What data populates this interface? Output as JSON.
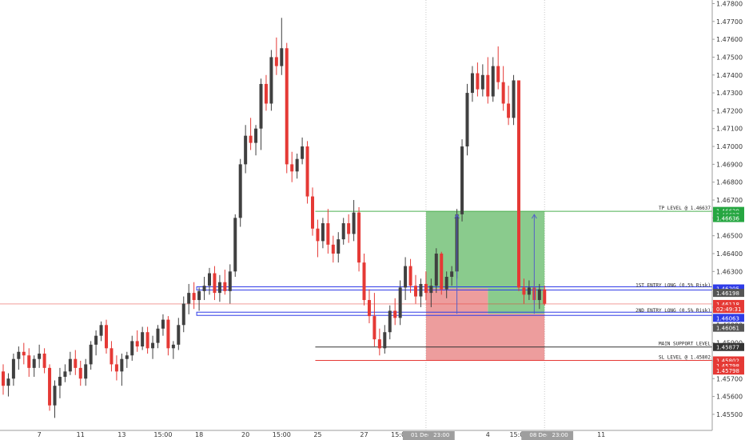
{
  "chart_data": {
    "type": "candlestick",
    "symbol_note": "",
    "ylim": [
      1.4541,
      1.4782
    ],
    "y_ticks": [
      "1.47800",
      "1.47700",
      "1.47600",
      "1.47500",
      "1.47400",
      "1.47300",
      "1.47200",
      "1.47100",
      "1.47000",
      "1.46900",
      "1.46800",
      "1.46700",
      "1.46600",
      "1.46500",
      "1.46400",
      "1.46300",
      "1.46200",
      "1.46100",
      "1.46000",
      "1.45900",
      "1.45800",
      "1.45700",
      "1.45600",
      "1.45500"
    ],
    "x_tick_labels": [
      {
        "label": "7",
        "index": 7
      },
      {
        "label": "11",
        "index": 15
      },
      {
        "label": "13",
        "index": 23
      },
      {
        "label": "15:00",
        "index": 31
      },
      {
        "label": "18",
        "index": 38
      },
      {
        "label": "20",
        "index": 47
      },
      {
        "label": "15:00",
        "index": 54
      },
      {
        "label": "25",
        "index": 61
      },
      {
        "label": "27",
        "index": 70
      },
      {
        "label": "15:00",
        "index": 77
      },
      {
        "label": "4",
        "index": 94
      },
      {
        "label": "15:00",
        "index": 100
      },
      {
        "label": "11",
        "index": 116
      }
    ],
    "x_highlight_labels": [
      {
        "label": "01 Dec '19",
        "index": 82
      },
      {
        "label": "23:00",
        "index": 85
      },
      {
        "label": "08 Dec '19",
        "index": 105
      },
      {
        "label": "23:00",
        "index": 108
      }
    ],
    "candles": [
      [
        1.4574,
        1.4578,
        1.4561,
        1.4566
      ],
      [
        1.4566,
        1.4573,
        1.456,
        1.457
      ],
      [
        1.457,
        1.4584,
        1.4566,
        1.4581
      ],
      [
        1.4581,
        1.4588,
        1.4575,
        1.4585
      ],
      [
        1.4585,
        1.459,
        1.4578,
        1.4583
      ],
      [
        1.4583,
        1.4587,
        1.4571,
        1.4576
      ],
      [
        1.4576,
        1.4583,
        1.4571,
        1.4581
      ],
      [
        1.4581,
        1.4589,
        1.4576,
        1.4584
      ],
      [
        1.4584,
        1.4587,
        1.4573,
        1.4576
      ],
      [
        1.4576,
        1.4578,
        1.4552,
        1.4555
      ],
      [
        1.4555,
        1.4569,
        1.4548,
        1.4566
      ],
      [
        1.4566,
        1.4576,
        1.4559,
        1.4571
      ],
      [
        1.4571,
        1.4578,
        1.4568,
        1.4574
      ],
      [
        1.4574,
        1.4585,
        1.4572,
        1.4581
      ],
      [
        1.4581,
        1.4586,
        1.4572,
        1.4576
      ],
      [
        1.4576,
        1.458,
        1.4566,
        1.457
      ],
      [
        1.457,
        1.4581,
        1.4566,
        1.4578
      ],
      [
        1.4578,
        1.4591,
        1.4575,
        1.4589
      ],
      [
        1.4589,
        1.4597,
        1.4583,
        1.4594
      ],
      [
        1.4594,
        1.4602,
        1.4591,
        1.46
      ],
      [
        1.46,
        1.4603,
        1.4584,
        1.4587
      ],
      [
        1.4587,
        1.4591,
        1.4574,
        1.4578
      ],
      [
        1.4578,
        1.4583,
        1.4569,
        1.4574
      ],
      [
        1.4574,
        1.4584,
        1.4566,
        1.4581
      ],
      [
        1.4581,
        1.4585,
        1.4576,
        1.4583
      ],
      [
        1.4583,
        1.4594,
        1.458,
        1.4591
      ],
      [
        1.4591,
        1.4597,
        1.4585,
        1.4588
      ],
      [
        1.4588,
        1.4599,
        1.4586,
        1.4596
      ],
      [
        1.4596,
        1.4599,
        1.4584,
        1.4587
      ],
      [
        1.4587,
        1.4594,
        1.4581,
        1.459
      ],
      [
        1.459,
        1.46,
        1.4587,
        1.4598
      ],
      [
        1.4598,
        1.4606,
        1.4594,
        1.4603
      ],
      [
        1.4603,
        1.4605,
        1.4583,
        1.4587
      ],
      [
        1.4587,
        1.4591,
        1.4581,
        1.4589
      ],
      [
        1.4589,
        1.4604,
        1.4586,
        1.46
      ],
      [
        1.46,
        1.4616,
        1.4596,
        1.4612
      ],
      [
        1.4612,
        1.4623,
        1.4606,
        1.4618
      ],
      [
        1.4618,
        1.4624,
        1.4609,
        1.4614
      ],
      [
        1.4614,
        1.4621,
        1.4608,
        1.4619
      ],
      [
        1.4619,
        1.4627,
        1.4614,
        1.4622
      ],
      [
        1.4622,
        1.4632,
        1.4617,
        1.4629
      ],
      [
        1.4629,
        1.4633,
        1.4614,
        1.4618
      ],
      [
        1.4618,
        1.4628,
        1.4613,
        1.4624
      ],
      [
        1.4624,
        1.4631,
        1.4617,
        1.4619
      ],
      [
        1.4619,
        1.4634,
        1.4612,
        1.463
      ],
      [
        1.463,
        1.4662,
        1.4627,
        1.466
      ],
      [
        1.466,
        1.4693,
        1.4655,
        1.469
      ],
      [
        1.469,
        1.4712,
        1.4685,
        1.4706
      ],
      [
        1.4706,
        1.4716,
        1.4698,
        1.4702
      ],
      [
        1.4702,
        1.4712,
        1.4695,
        1.471
      ],
      [
        1.471,
        1.4738,
        1.4698,
        1.4735
      ],
      [
        1.4735,
        1.474,
        1.472,
        1.4724
      ],
      [
        1.4724,
        1.4754,
        1.472,
        1.475
      ],
      [
        1.475,
        1.4761,
        1.474,
        1.4745
      ],
      [
        1.4745,
        1.4772,
        1.474,
        1.4755
      ],
      [
        1.4755,
        1.4758,
        1.4685,
        1.469
      ],
      [
        1.469,
        1.4697,
        1.468,
        1.4686
      ],
      [
        1.4686,
        1.4696,
        1.4682,
        1.4693
      ],
      [
        1.4693,
        1.4705,
        1.469,
        1.47
      ],
      [
        1.47,
        1.4703,
        1.4668,
        1.4672
      ],
      [
        1.4672,
        1.4677,
        1.465,
        1.4654
      ],
      [
        1.4654,
        1.4659,
        1.4638,
        1.4647
      ],
      [
        1.4647,
        1.466,
        1.4643,
        1.4657
      ],
      [
        1.4657,
        1.4665,
        1.464,
        1.4645
      ],
      [
        1.4645,
        1.465,
        1.4635,
        1.464
      ],
      [
        1.464,
        1.4652,
        1.4635,
        1.4648
      ],
      [
        1.4648,
        1.466,
        1.4645,
        1.4657
      ],
      [
        1.4657,
        1.4662,
        1.4646,
        1.4651
      ],
      [
        1.4651,
        1.467,
        1.4647,
        1.4663
      ],
      [
        1.4663,
        1.4666,
        1.463,
        1.4635
      ],
      [
        1.4635,
        1.464,
        1.4611,
        1.4614
      ],
      [
        1.4614,
        1.462,
        1.4601,
        1.4605
      ],
      [
        1.4605,
        1.4618,
        1.4588,
        1.4592
      ],
      [
        1.4592,
        1.4598,
        1.4583,
        1.4587
      ],
      [
        1.4587,
        1.46,
        1.4584,
        1.4596
      ],
      [
        1.4596,
        1.4611,
        1.4592,
        1.4608
      ],
      [
        1.4608,
        1.4615,
        1.46,
        1.4604
      ],
      [
        1.4604,
        1.4625,
        1.46,
        1.4621
      ],
      [
        1.4621,
        1.4638,
        1.4614,
        1.4633
      ],
      [
        1.4633,
        1.4637,
        1.4618,
        1.4622
      ],
      [
        1.4622,
        1.4628,
        1.4612,
        1.4616
      ],
      [
        1.4616,
        1.4626,
        1.461,
        1.4623
      ],
      [
        1.4623,
        1.463,
        1.4614,
        1.4618
      ],
      [
        1.4618,
        1.4626,
        1.461,
        1.4622
      ],
      [
        1.4622,
        1.4643,
        1.4618,
        1.464
      ],
      [
        1.464,
        1.4641,
        1.4617,
        1.462
      ],
      [
        1.462,
        1.463,
        1.4615,
        1.4627
      ],
      [
        1.4627,
        1.4633,
        1.4622,
        1.463
      ],
      [
        1.463,
        1.4665,
        1.4626,
        1.4662
      ],
      [
        1.4662,
        1.4704,
        1.4658,
        1.47
      ],
      [
        1.47,
        1.4735,
        1.4695,
        1.473
      ],
      [
        1.473,
        1.4745,
        1.4725,
        1.4741
      ],
      [
        1.4741,
        1.4747,
        1.4728,
        1.4732
      ],
      [
        1.4732,
        1.4746,
        1.4728,
        1.474
      ],
      [
        1.474,
        1.475,
        1.4724,
        1.4728
      ],
      [
        1.4728,
        1.475,
        1.4725,
        1.4745
      ],
      [
        1.4745,
        1.4756,
        1.4732,
        1.4736
      ],
      [
        1.4736,
        1.4745,
        1.472,
        1.4724
      ],
      [
        1.4724,
        1.4734,
        1.4712,
        1.4716
      ],
      [
        1.4716,
        1.474,
        1.4712,
        1.4737
      ],
      [
        1.4737,
        1.4737,
        1.4619,
        1.4621
      ],
      [
        1.4621,
        1.4626,
        1.4612,
        1.4617
      ],
      [
        1.4617,
        1.4625,
        1.4614,
        1.4621
      ],
      [
        1.4621,
        1.4625,
        1.4612,
        1.4614
      ],
      [
        1.4614,
        1.4623,
        1.4609,
        1.462
      ],
      [
        1.462,
        1.4622,
        1.4611,
        1.4612
      ]
    ],
    "levels": [
      {
        "label": "TP LEVEL @ 1.46637",
        "price": 1.46637,
        "color": "#4caf50",
        "start_index": 61
      },
      {
        "label": "1ST ENTRY LONG (0.5% Risk)",
        "price": 1.46205,
        "color": "#2f3ce8",
        "start_index": 38
      },
      {
        "label": "2ND ENTRY LONG (0.5% Risk)",
        "price": 1.46063,
        "color": "#2f3ce8",
        "start_index": 38
      },
      {
        "label": "MAIN SUPPORT LEVEL",
        "price": 1.45877,
        "color": "#333333",
        "start_index": 61
      },
      {
        "label": "SL LEVEL @ 1.45802",
        "price": 1.45802,
        "color": "#e53935",
        "start_index": 61
      }
    ],
    "current_price": 1.46118,
    "price_tags": [
      {
        "text": "1.46639",
        "price": 1.46639,
        "color": "#26a641"
      },
      {
        "text": "1.46637",
        "price": 1.46618,
        "color": "#26a641"
      },
      {
        "text": "1.46636",
        "price": 1.46599,
        "color": "#26a641"
      },
      {
        "text": "1.46205",
        "price": 1.46205,
        "color": "#2f3ce8"
      },
      {
        "text": "1.46198",
        "price": 1.4618,
        "color": "#555555"
      },
      {
        "text": "1.46118",
        "price": 1.46118,
        "color": "#e53935"
      },
      {
        "text": "02:49:31",
        "price": 1.4609,
        "color": "#e53935"
      },
      {
        "text": "1.46063",
        "price": 1.4604,
        "color": "#2f3ce8"
      },
      {
        "text": "1.46061",
        "price": 1.45985,
        "color": "#555555"
      },
      {
        "text": "1.45877",
        "price": 1.45877,
        "color": "#333333"
      },
      {
        "text": "1.45802",
        "price": 1.45802,
        "color": "#e53935"
      },
      {
        "text": "1.45798",
        "price": 1.45773,
        "color": "#e53935"
      },
      {
        "text": "1.45798",
        "price": 1.45745,
        "color": "#e53935"
      }
    ],
    "colors": {
      "up": "#404040",
      "down": "#e53935",
      "profit_zone": "#4caf50",
      "loss_zone": "#e57373",
      "entry_band": "#2f3ce8",
      "arrow": "#5561c8"
    }
  }
}
